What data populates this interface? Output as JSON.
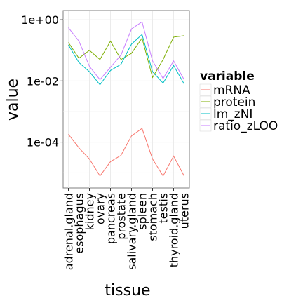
{
  "chart_data": {
    "type": "line",
    "xlabel": "tissue",
    "ylabel": "value",
    "y_scale": "log10",
    "ylim": [
      3.16e-06,
      2
    ],
    "y_ticks": [
      {
        "value": 1,
        "label": "1e+00"
      },
      {
        "value": 0.01,
        "label": "1e-02"
      },
      {
        "value": 0.0001,
        "label": "1e-04"
      }
    ],
    "grid": true,
    "legend_position": "right",
    "legend_title": "variable",
    "categories": [
      "adrenal.gland",
      "esophagus",
      "kidney",
      "ovary",
      "pancreas",
      "prostate",
      "salivary.gland",
      "spleen",
      "stomach",
      "testis",
      "thyroid.gland",
      "uterus"
    ],
    "series": [
      {
        "name": "mRNA",
        "color": "#F8766D",
        "values": [
          0.00018,
          6.5e-05,
          2.8e-05,
          7.8e-06,
          2.3e-05,
          3.7e-05,
          0.00016,
          0.00028,
          2.8e-05,
          7.8e-06,
          3.5e-05,
          7.8e-06
        ]
      },
      {
        "name": "protein",
        "color": "#7CAE00",
        "values": [
          0.18,
          0.055,
          0.1,
          0.05,
          0.2,
          0.05,
          0.08,
          0.25,
          0.013,
          0.05,
          0.27,
          0.3
        ]
      },
      {
        "name": "lm_zNI",
        "color": "#00BFC4",
        "values": [
          0.15,
          0.04,
          0.02,
          0.0075,
          0.022,
          0.035,
          0.16,
          0.33,
          0.02,
          0.0085,
          0.032,
          0.008
        ]
      },
      {
        "name": "ratio_zLOO",
        "color": "#C77CFF",
        "values": [
          0.55,
          0.2,
          0.03,
          0.011,
          0.028,
          0.07,
          0.5,
          0.85,
          0.045,
          0.012,
          0.045,
          0.011
        ]
      }
    ]
  }
}
